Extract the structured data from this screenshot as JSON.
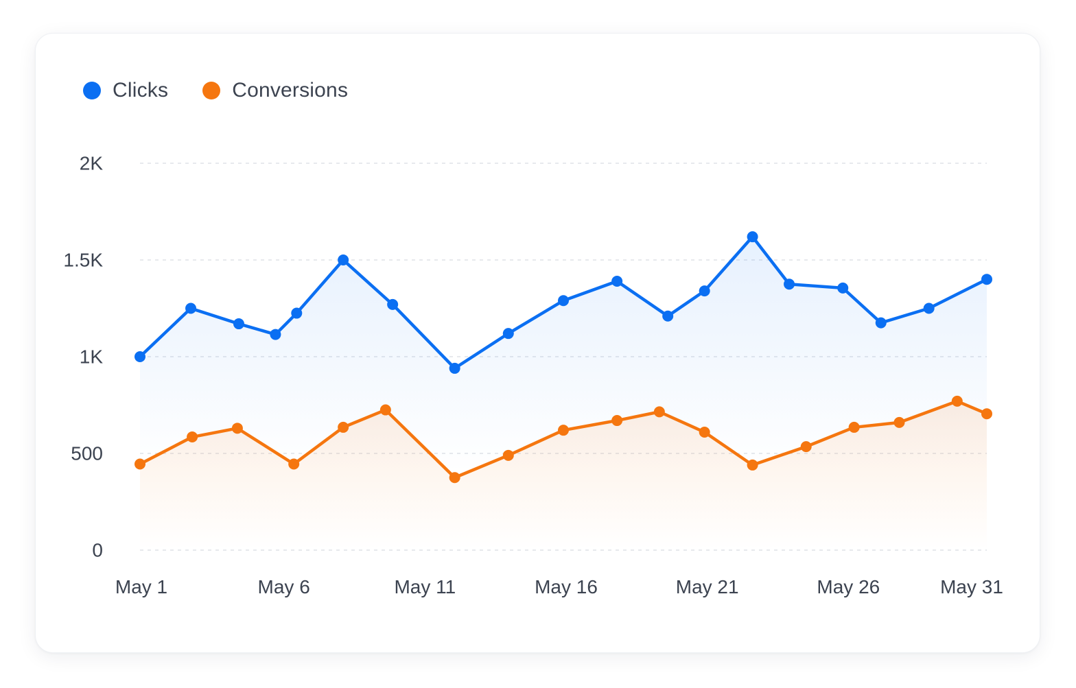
{
  "legend": [
    {
      "label": "Clicks",
      "color": "#0b6ff2"
    },
    {
      "label": "Conversions",
      "color": "#f5760f"
    }
  ],
  "chart_data": {
    "type": "line",
    "title": "",
    "xlabel": "",
    "ylabel": "",
    "ylim": [
      0,
      2000
    ],
    "y_ticks": [
      {
        "value": 0,
        "label": "0"
      },
      {
        "value": 500,
        "label": "500"
      },
      {
        "value": 1000,
        "label": "1K"
      },
      {
        "value": 1500,
        "label": "1.5K"
      },
      {
        "value": 2000,
        "label": "2K"
      }
    ],
    "x_ticks": [
      {
        "value": 1,
        "label": "May 1"
      },
      {
        "value": 6,
        "label": "May 6"
      },
      {
        "value": 11,
        "label": "May 11"
      },
      {
        "value": 16,
        "label": "May 16"
      },
      {
        "value": 21,
        "label": "May 21"
      },
      {
        "value": 26,
        "label": "May 26"
      },
      {
        "value": 31,
        "label": "May 31"
      }
    ],
    "xlim": [
      1,
      31
    ],
    "grid": true,
    "legend_position": "top-left",
    "series": [
      {
        "name": "Clicks",
        "color": "#0b6ff2",
        "area": true,
        "points": [
          [
            1,
            1000
          ],
          [
            2.8,
            1250
          ],
          [
            4.5,
            1170
          ],
          [
            5.8,
            1115
          ],
          [
            6.55,
            1225
          ],
          [
            8.2,
            1500
          ],
          [
            9.95,
            1270
          ],
          [
            12.15,
            940
          ],
          [
            14.05,
            1120
          ],
          [
            16.0,
            1290
          ],
          [
            17.9,
            1390
          ],
          [
            19.7,
            1210
          ],
          [
            21.0,
            1340
          ],
          [
            22.7,
            1620
          ],
          [
            24.0,
            1375
          ],
          [
            25.9,
            1355
          ],
          [
            27.25,
            1175
          ],
          [
            28.95,
            1250
          ],
          [
            31,
            1400
          ]
        ]
      },
      {
        "name": "Conversions",
        "color": "#f5760f",
        "area": true,
        "points": [
          [
            1,
            445
          ],
          [
            2.85,
            585
          ],
          [
            4.45,
            630
          ],
          [
            6.45,
            445
          ],
          [
            8.2,
            635
          ],
          [
            9.7,
            725
          ],
          [
            12.15,
            375
          ],
          [
            14.05,
            490
          ],
          [
            16.0,
            620
          ],
          [
            17.9,
            670
          ],
          [
            19.4,
            715
          ],
          [
            21.0,
            610
          ],
          [
            22.7,
            440
          ],
          [
            24.6,
            535
          ],
          [
            26.3,
            635
          ],
          [
            27.9,
            660
          ],
          [
            29.95,
            770
          ],
          [
            31,
            705
          ]
        ]
      }
    ]
  }
}
